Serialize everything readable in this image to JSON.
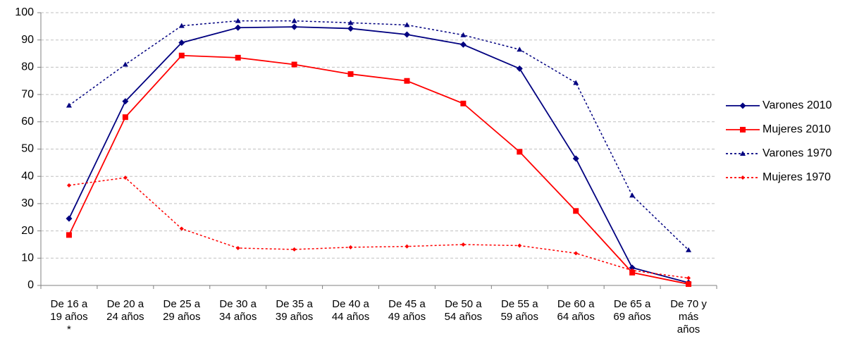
{
  "chart_data": {
    "type": "line",
    "categories": [
      "De 16 a\n19 años\n*",
      "De 20 a\n24 años",
      "De 25 a\n29 años",
      "De 30 a\n34 años",
      "De 35 a\n39 años",
      "De 40 a\n44 años",
      "De 45 a\n49 años",
      "De 50 a\n54 años",
      "De 55 a\n59 años",
      "De 60 a\n64 años",
      "De 65 a\n69 años",
      "De 70 y\nmás\naños"
    ],
    "series": [
      {
        "name": "Varones 2010",
        "color": "#000080",
        "dash": "solid",
        "marker": "diamond",
        "values": [
          24.5,
          67.5,
          89,
          94.5,
          94.8,
          94.2,
          92,
          88.3,
          79.5,
          46.5,
          6.5,
          1
        ]
      },
      {
        "name": "Mujeres 2010",
        "color": "#ff0000",
        "dash": "solid",
        "marker": "square",
        "values": [
          18.5,
          61.7,
          84.3,
          83.5,
          81,
          77.5,
          75,
          66.7,
          49,
          27.3,
          4.7,
          0.5
        ]
      },
      {
        "name": "Varones 1970",
        "color": "#000080",
        "dash": "dotted",
        "marker": "triangle",
        "values": [
          66,
          81,
          95.2,
          97,
          97,
          96.3,
          95.5,
          91.8,
          86.5,
          74.3,
          33,
          13
        ]
      },
      {
        "name": "Mujeres 1970",
        "color": "#ff0000",
        "dash": "dotted",
        "marker": "small-diamond",
        "values": [
          36.7,
          39.5,
          20.8,
          13.7,
          13.2,
          14,
          14.3,
          15,
          14.6,
          11.8,
          5.5,
          2.7
        ]
      }
    ],
    "ylim": [
      0,
      100
    ],
    "yticks": [
      0,
      10,
      20,
      30,
      40,
      50,
      60,
      70,
      80,
      90,
      100
    ],
    "grid": true,
    "legend": "right"
  }
}
